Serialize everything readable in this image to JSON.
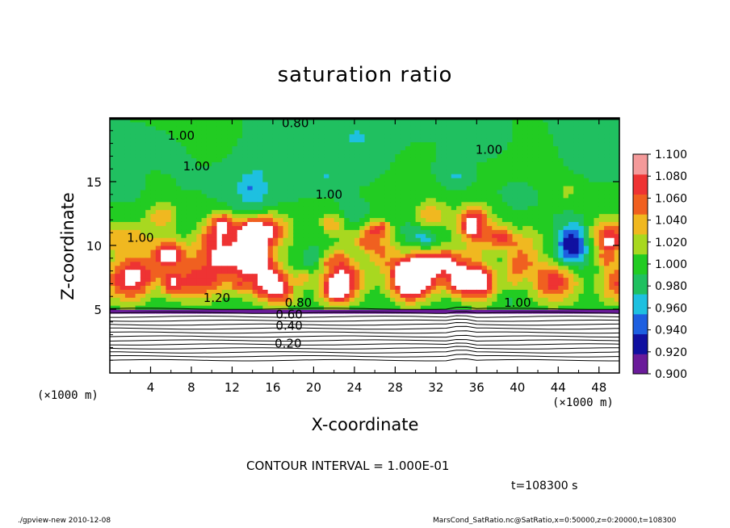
{
  "chart_data": {
    "type": "heatmap",
    "title": "saturation ratio",
    "xlabel": "X-coordinate",
    "ylabel": "Z-coordinate",
    "x_unit": "(×1000 m)",
    "xlim": [
      0,
      50
    ],
    "ylim": [
      0,
      20
    ],
    "x_ticks": [
      4,
      8,
      12,
      16,
      20,
      24,
      28,
      32,
      36,
      40,
      44,
      48
    ],
    "y_ticks": [
      5,
      10,
      15
    ],
    "colorbar": {
      "levels": [
        0.9,
        0.92,
        0.94,
        0.96,
        0.98,
        1.0,
        1.02,
        1.04,
        1.06,
        1.08,
        1.1
      ],
      "labels": [
        "0.900",
        "0.920",
        "0.940",
        "0.960",
        "0.980",
        "1.000",
        "1.020",
        "1.040",
        "1.060",
        "1.080",
        "1.100"
      ],
      "colors": [
        "#6a1b9a",
        "#1010a0",
        "#1d5fe0",
        "#1ec0e0",
        "#20c060",
        "#22cc22",
        "#a8d820",
        "#f0b820",
        "#f06020",
        "#ee3333",
        "#f49a9a"
      ]
    },
    "contour_labels": [
      {
        "text": "0.20",
        "x": 17.5,
        "z": 2.3
      },
      {
        "text": "0.40",
        "x": 17.6,
        "z": 3.7
      },
      {
        "text": "0.60",
        "x": 17.6,
        "z": 4.6
      },
      {
        "text": "0.80",
        "x": 18.5,
        "z": 5.5
      },
      {
        "text": "1.20",
        "x": 10.5,
        "z": 5.9
      },
      {
        "text": "1.00",
        "x": 40.0,
        "z": 5.5
      },
      {
        "text": "1.00",
        "x": 3.0,
        "z": 10.6
      },
      {
        "text": "1.00",
        "x": 7.0,
        "z": 18.6
      },
      {
        "text": "1.00",
        "x": 8.5,
        "z": 16.2
      },
      {
        "text": "1.00",
        "x": 21.5,
        "z": 14.0
      },
      {
        "text": "1.00",
        "x": 37.2,
        "z": 17.5
      },
      {
        "text": "0.80",
        "x": 18.2,
        "z": 19.6
      }
    ],
    "contour_interval_text": "CONTOUR INTERVAL = 1.000E-01"
  },
  "time_label": "t=108300 s",
  "footer": {
    "left": "./gpview-new   2010-12-08",
    "right": "MarsCond_SatRatio.nc@SatRatio,x=0:50000,z=0:20000,t=108300"
  }
}
